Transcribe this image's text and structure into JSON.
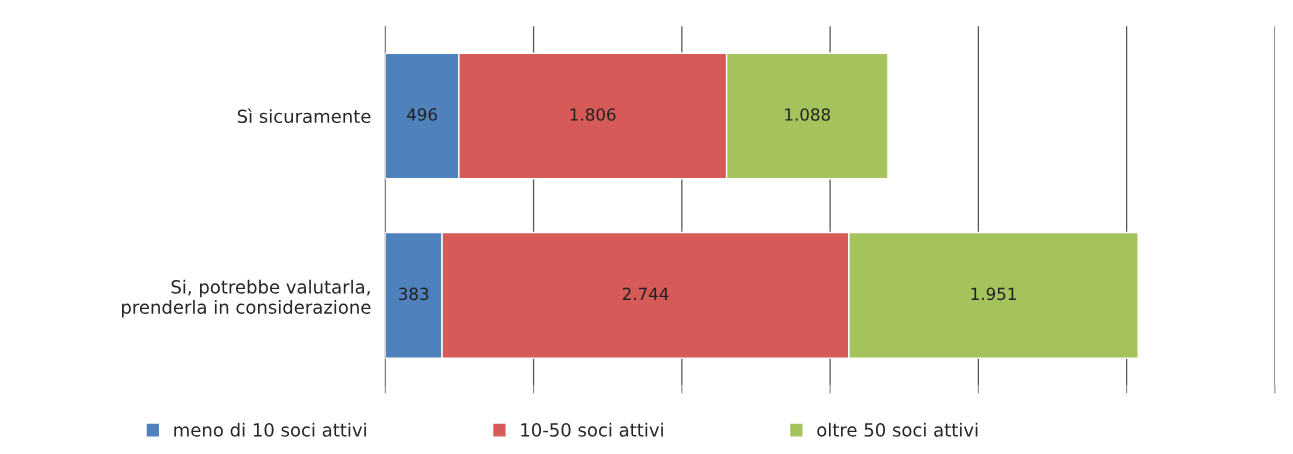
{
  "chart_data": {
    "type": "bar",
    "orientation": "horizontal",
    "stacked": true,
    "categories": [
      "Sì sicuramente",
      "Si, potrebbe valutarla,\nprenderla in considerazione"
    ],
    "series": [
      {
        "name": "meno di 10 soci attivi",
        "color": "#4f81bd",
        "values": [
          496,
          383
        ],
        "value_labels": [
          "496",
          "383"
        ]
      },
      {
        "name": "10-50 soci attivi",
        "color": "#d65b58",
        "values": [
          1806,
          2744
        ],
        "value_labels": [
          "1.806",
          "2.744"
        ]
      },
      {
        "name": "oltre 50 soci attivi",
        "color": "#a4c35d",
        "values": [
          1088,
          1951
        ],
        "value_labels": [
          "1.088",
          "1.951"
        ]
      }
    ],
    "xlim": [
      0,
      6000
    ],
    "xticks": [
      {
        "value": 0,
        "label": null
      },
      {
        "value": 1000,
        "label": null
      },
      {
        "value": 2000,
        "label": null
      },
      {
        "value": 3000,
        "label": null
      },
      {
        "value": 4000,
        "label": null
      },
      {
        "value": 5000,
        "label": null
      },
      {
        "value": 6000,
        "label": null
      }
    ],
    "tick_labels": "y",
    "grid": "x",
    "legend": "bottom"
  }
}
